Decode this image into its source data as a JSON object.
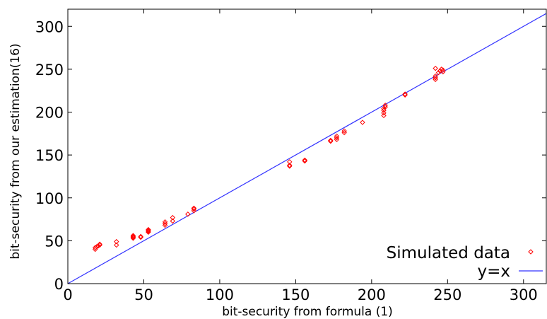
{
  "chart_data": {
    "type": "scatter",
    "title": "",
    "xlabel": "bit-security from formula (1)",
    "ylabel": "bit-security from our estimation(16)",
    "xlim": [
      0,
      315
    ],
    "ylim": [
      0,
      320
    ],
    "xticks": [
      0,
      50,
      100,
      150,
      200,
      250,
      300
    ],
    "yticks": [
      0,
      50,
      100,
      150,
      200,
      250,
      300
    ],
    "xtick_labels": [
      "0",
      "50",
      "100",
      "150",
      "200",
      "250",
      "300"
    ],
    "ytick_labels": [
      "0",
      "50",
      "100",
      "150",
      "200",
      "250",
      "300"
    ],
    "grid": false,
    "legend_position": "bottom-right",
    "series": [
      {
        "name": "Simulated data",
        "kind": "scatter",
        "marker": "diamond-open",
        "color": "#ff0000",
        "points": [
          [
            18,
            40
          ],
          [
            18,
            42
          ],
          [
            19,
            43
          ],
          [
            20,
            44
          ],
          [
            21,
            45
          ],
          [
            21,
            46
          ],
          [
            32,
            45
          ],
          [
            32,
            49
          ],
          [
            43,
            53
          ],
          [
            43,
            54
          ],
          [
            43,
            55
          ],
          [
            43,
            56
          ],
          [
            48,
            54
          ],
          [
            48,
            55
          ],
          [
            53,
            60
          ],
          [
            53,
            61
          ],
          [
            53,
            62
          ],
          [
            53,
            63
          ],
          [
            64,
            68
          ],
          [
            64,
            70
          ],
          [
            64,
            72
          ],
          [
            69,
            73
          ],
          [
            69,
            77
          ],
          [
            79,
            81
          ],
          [
            83,
            85
          ],
          [
            83,
            87
          ],
          [
            83,
            88
          ],
          [
            146,
            137
          ],
          [
            146,
            138
          ],
          [
            146,
            142
          ],
          [
            156,
            143
          ],
          [
            156,
            144
          ],
          [
            173,
            166
          ],
          [
            173,
            167
          ],
          [
            177,
            168
          ],
          [
            177,
            170
          ],
          [
            177,
            172
          ],
          [
            182,
            176
          ],
          [
            182,
            178
          ],
          [
            194,
            188
          ],
          [
            208,
            196
          ],
          [
            208,
            199
          ],
          [
            208,
            202
          ],
          [
            208,
            204
          ],
          [
            209,
            206
          ],
          [
            209,
            208
          ],
          [
            222,
            220
          ],
          [
            222,
            221
          ],
          [
            242,
            238
          ],
          [
            242,
            240
          ],
          [
            242,
            242
          ],
          [
            242,
            251
          ],
          [
            244,
            246
          ],
          [
            245,
            248
          ],
          [
            246,
            250
          ],
          [
            247,
            247
          ],
          [
            247,
            249
          ]
        ]
      },
      {
        "name": "y=x",
        "kind": "line",
        "color": "#3333ff",
        "points": [
          [
            0,
            0
          ],
          [
            315,
            315
          ]
        ]
      }
    ]
  }
}
